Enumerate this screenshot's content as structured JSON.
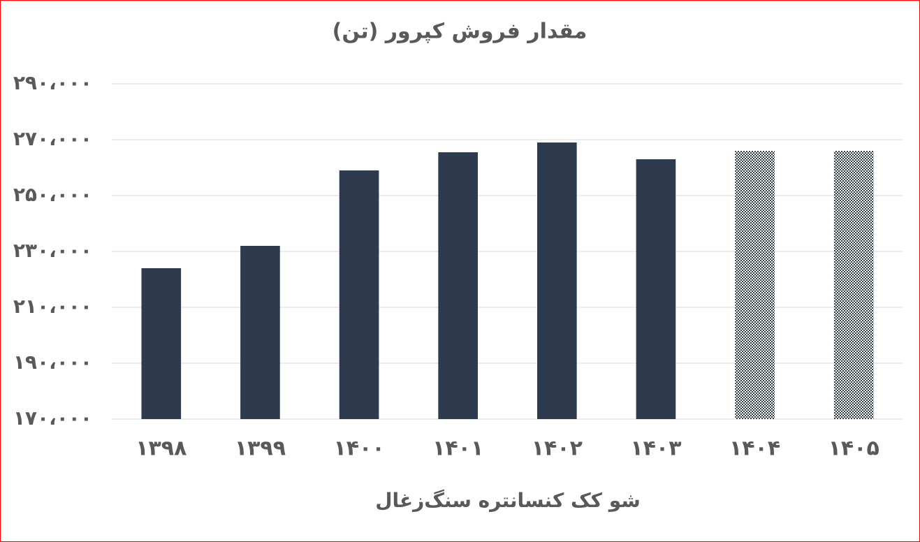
{
  "chart_data": {
    "type": "bar",
    "title": "مقدار فروش کپرور (تن)",
    "x_label": "شو کک کنسانتره سنگ‌زغال",
    "categories": [
      "۱۳۹۸",
      "۱۳۹۹",
      "۱۴۰۰",
      "۱۴۰۱",
      "۱۴۰۲",
      "۱۴۰۳",
      "۱۴۰۴",
      "۱۴۰۵"
    ],
    "values": [
      224000,
      232000,
      259000,
      265500,
      269000,
      263000,
      266000,
      266000
    ],
    "bar_styles": [
      "solid",
      "solid",
      "solid",
      "solid",
      "solid",
      "solid",
      "checkered",
      "checkered"
    ],
    "color": "#2e3b4f",
    "ylim": [
      170000,
      290000
    ],
    "yticks": [
      {
        "value": 170000,
        "label": "۱۷۰،۰۰۰"
      },
      {
        "value": 190000,
        "label": "۱۹۰،۰۰۰"
      },
      {
        "value": 210000,
        "label": "۲۱۰،۰۰۰"
      },
      {
        "value": 230000,
        "label": "۲۳۰،۰۰۰"
      },
      {
        "value": 250000,
        "label": "۲۵۰،۰۰۰"
      },
      {
        "value": 270000,
        "label": "۲۷۰،۰۰۰"
      },
      {
        "value": 290000,
        "label": "۲۹۰،۰۰۰"
      }
    ],
    "grid": true
  }
}
